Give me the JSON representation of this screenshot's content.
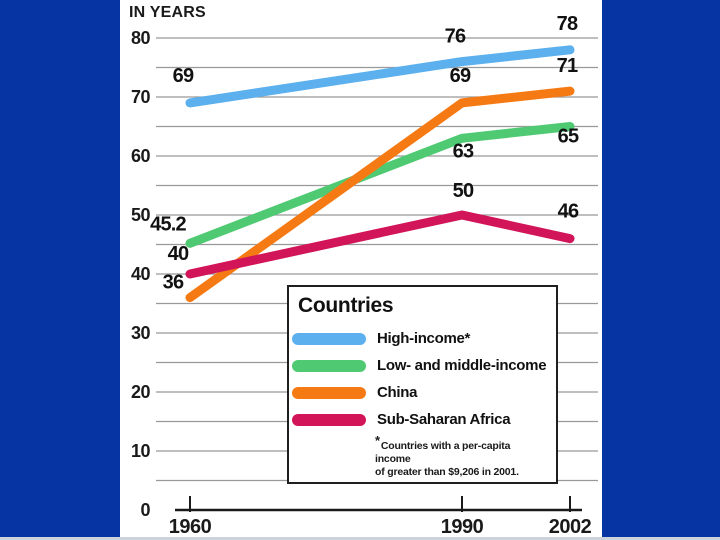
{
  "colors": {
    "background": "#0634a3",
    "panel": "#ffffff",
    "gridline": "#999999",
    "axis": "#1a1a1a",
    "text": "#111111"
  },
  "chart_data": {
    "type": "line",
    "title": "IN YEARS",
    "xlabel": "",
    "ylabel": "IN YEARS",
    "x": [
      1960,
      1990,
      2002
    ],
    "x_tick_labels": [
      "1960",
      "1990",
      "2002"
    ],
    "ylim": [
      0,
      80
    ],
    "gridline_step": 5,
    "grid": true,
    "y_tick_labels": [
      "0",
      "10",
      "20",
      "30",
      "40",
      "50",
      "60",
      "70",
      "80"
    ],
    "series": [
      {
        "name": "High-income*",
        "color": "#5cb0ee",
        "values": [
          69,
          76,
          78
        ],
        "point_labels": [
          "69",
          "76",
          "78"
        ]
      },
      {
        "name": "Low- and middle-income",
        "color": "#4fca73",
        "values": [
          45.2,
          63,
          65
        ],
        "point_labels": [
          "45.2",
          "63",
          "65"
        ]
      },
      {
        "name": "China",
        "color": "#f67a14",
        "values": [
          36,
          69,
          71
        ],
        "point_labels": [
          "36",
          "69",
          "71"
        ]
      },
      {
        "name": "Sub-Saharan Africa",
        "color": "#d21458",
        "values": [
          40,
          50,
          46
        ],
        "point_labels": [
          "40",
          "50",
          "46"
        ]
      }
    ],
    "legend": {
      "title": "Countries",
      "position": "bottom-center",
      "footnote_asterisk": "*",
      "footnote_line1": "Countries with a per-capita income",
      "footnote_line2": "of greater than $9,206 in 2001."
    }
  }
}
